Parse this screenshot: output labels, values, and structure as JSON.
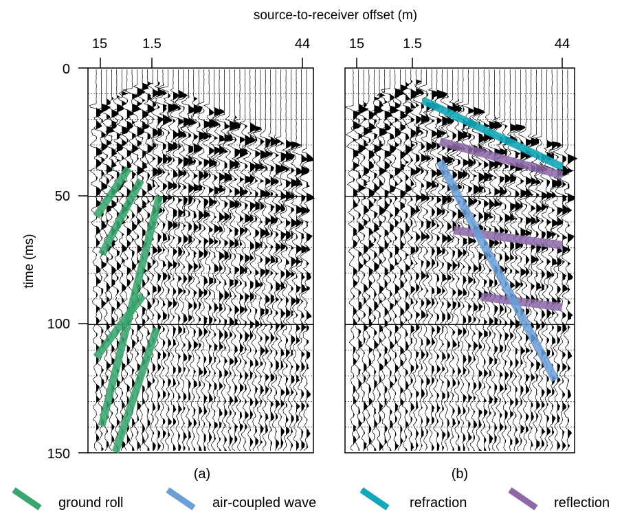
{
  "figure": {
    "top_axis_label": "source-to-receiver offset (m)",
    "y_axis_label": "time (ms)",
    "panels": [
      {
        "label": "(a)",
        "offset_ticks": [
          "15",
          "1.5",
          "44"
        ],
        "time_ticks": [
          "0",
          "50",
          "100",
          "150"
        ]
      },
      {
        "label": "(b)",
        "offset_ticks": [
          "15",
          "1.5",
          "44"
        ]
      }
    ],
    "legend": [
      {
        "label": "ground roll",
        "color": "#3aa56e"
      },
      {
        "label": "air-coupled wave",
        "color": "#6a9fd8"
      },
      {
        "label": "refraction",
        "color": "#12a8b8"
      },
      {
        "label": "reflection",
        "color": "#8c68a8"
      }
    ]
  }
}
